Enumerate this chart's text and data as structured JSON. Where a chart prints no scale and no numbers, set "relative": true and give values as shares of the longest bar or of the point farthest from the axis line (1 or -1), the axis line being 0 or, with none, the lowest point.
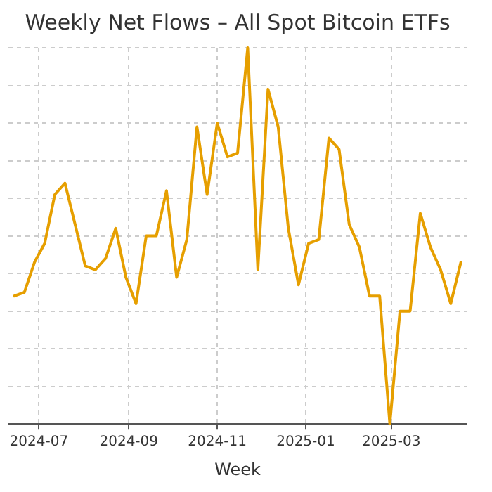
{
  "chart_data": {
    "type": "line",
    "title": "Weekly Net Flows – All Spot Bitcoin ETFs",
    "xlabel": "Week",
    "relative": true,
    "grid": true,
    "legend": false,
    "marker": "none",
    "line_style": "solid",
    "x": [
      "2024-06-14",
      "2024-06-21",
      "2024-06-28",
      "2024-07-05",
      "2024-07-12",
      "2024-07-19",
      "2024-07-26",
      "2024-08-02",
      "2024-08-09",
      "2024-08-16",
      "2024-08-23",
      "2024-08-30",
      "2024-09-06",
      "2024-09-13",
      "2024-09-20",
      "2024-09-27",
      "2024-10-04",
      "2024-10-11",
      "2024-10-18",
      "2024-10-25",
      "2024-11-01",
      "2024-11-08",
      "2024-11-15",
      "2024-11-22",
      "2024-11-29",
      "2024-12-06",
      "2024-12-13",
      "2024-12-20",
      "2024-12-27",
      "2025-01-03",
      "2025-01-10",
      "2025-01-17",
      "2025-01-24",
      "2025-01-31",
      "2025-02-07",
      "2025-02-14",
      "2025-02-21",
      "2025-02-28",
      "2025-03-07",
      "2025-03-14",
      "2025-03-21",
      "2025-03-28",
      "2025-04-04",
      "2025-04-11",
      "2025-04-18"
    ],
    "xlim": [
      "2024-06-10",
      "2025-04-22"
    ],
    "xticks": [
      "2024-07",
      "2024-09",
      "2024-11",
      "2025-01",
      "2025-03"
    ],
    "series": [
      {
        "color": "#e69f00",
        "values": [
          0.34,
          0.35,
          0.43,
          0.48,
          0.61,
          0.64,
          0.53,
          0.42,
          0.41,
          0.44,
          0.52,
          0.39,
          0.32,
          0.5,
          0.5,
          0.62,
          0.39,
          0.49,
          0.79,
          0.61,
          0.8,
          0.71,
          0.72,
          1,
          0.41,
          0.89,
          0.79,
          0.52,
          0.37,
          0.48,
          0.49,
          0.76,
          0.73,
          0.53,
          0.47,
          0.34,
          0.34,
          0,
          0.3,
          0.3,
          0.56,
          0.47,
          0.41,
          0.32,
          0.43
        ]
      }
    ]
  }
}
